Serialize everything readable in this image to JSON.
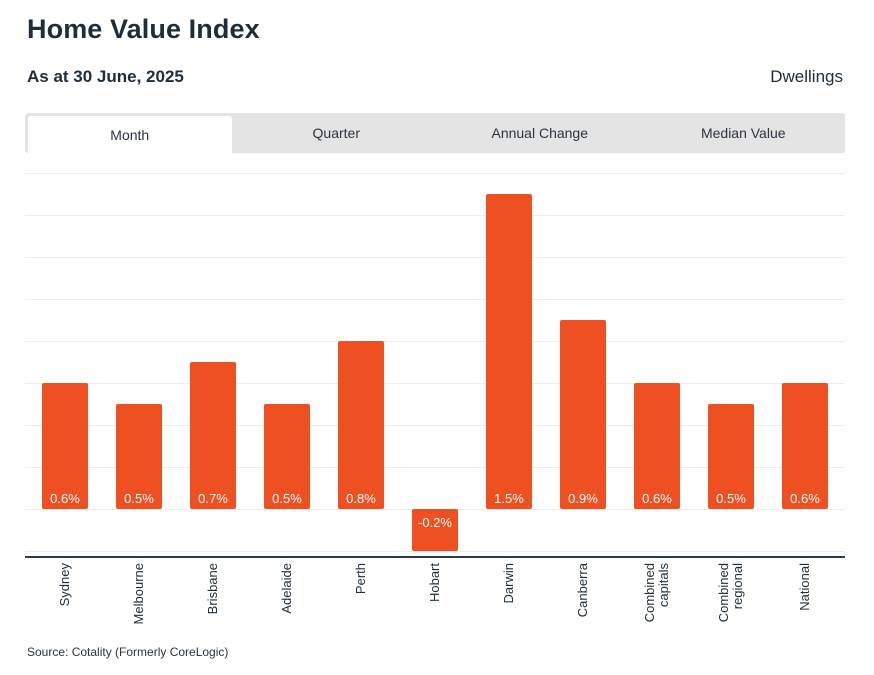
{
  "header": {
    "title": "Home Value Index",
    "subtitle": "As at 30 June, 2025",
    "segment": "Dwellings"
  },
  "tabs": [
    {
      "label": "Month",
      "active": true
    },
    {
      "label": "Quarter",
      "active": false
    },
    {
      "label": "Annual Change",
      "active": false
    },
    {
      "label": "Median Value",
      "active": false
    }
  ],
  "colors": {
    "bar": "#ee5022",
    "grid": "#ececec",
    "axis": "#2d3b4a"
  },
  "source": "Source: Cotality (Formerly CoreLogic)",
  "chart_data": {
    "type": "bar",
    "categories": [
      [
        "Sydney"
      ],
      [
        "Melbourne"
      ],
      [
        "Brisbane"
      ],
      [
        "Adelaide"
      ],
      [
        "Perth"
      ],
      [
        "Hobart"
      ],
      [
        "Darwin"
      ],
      [
        "Canberra"
      ],
      [
        "Combined",
        "capitals"
      ],
      [
        "Combined",
        "regional"
      ],
      [
        "National"
      ]
    ],
    "values": [
      0.6,
      0.5,
      0.7,
      0.5,
      0.8,
      -0.2,
      1.5,
      0.9,
      0.6,
      0.5,
      0.6
    ],
    "data_labels": [
      "0.6%",
      "0.5%",
      "0.7%",
      "0.5%",
      "0.8%",
      "-0.2%",
      "1.5%",
      "0.9%",
      "0.6%",
      "0.5%",
      "0.6%"
    ],
    "ylim": [
      -0.2,
      1.6
    ],
    "grid": true
  }
}
